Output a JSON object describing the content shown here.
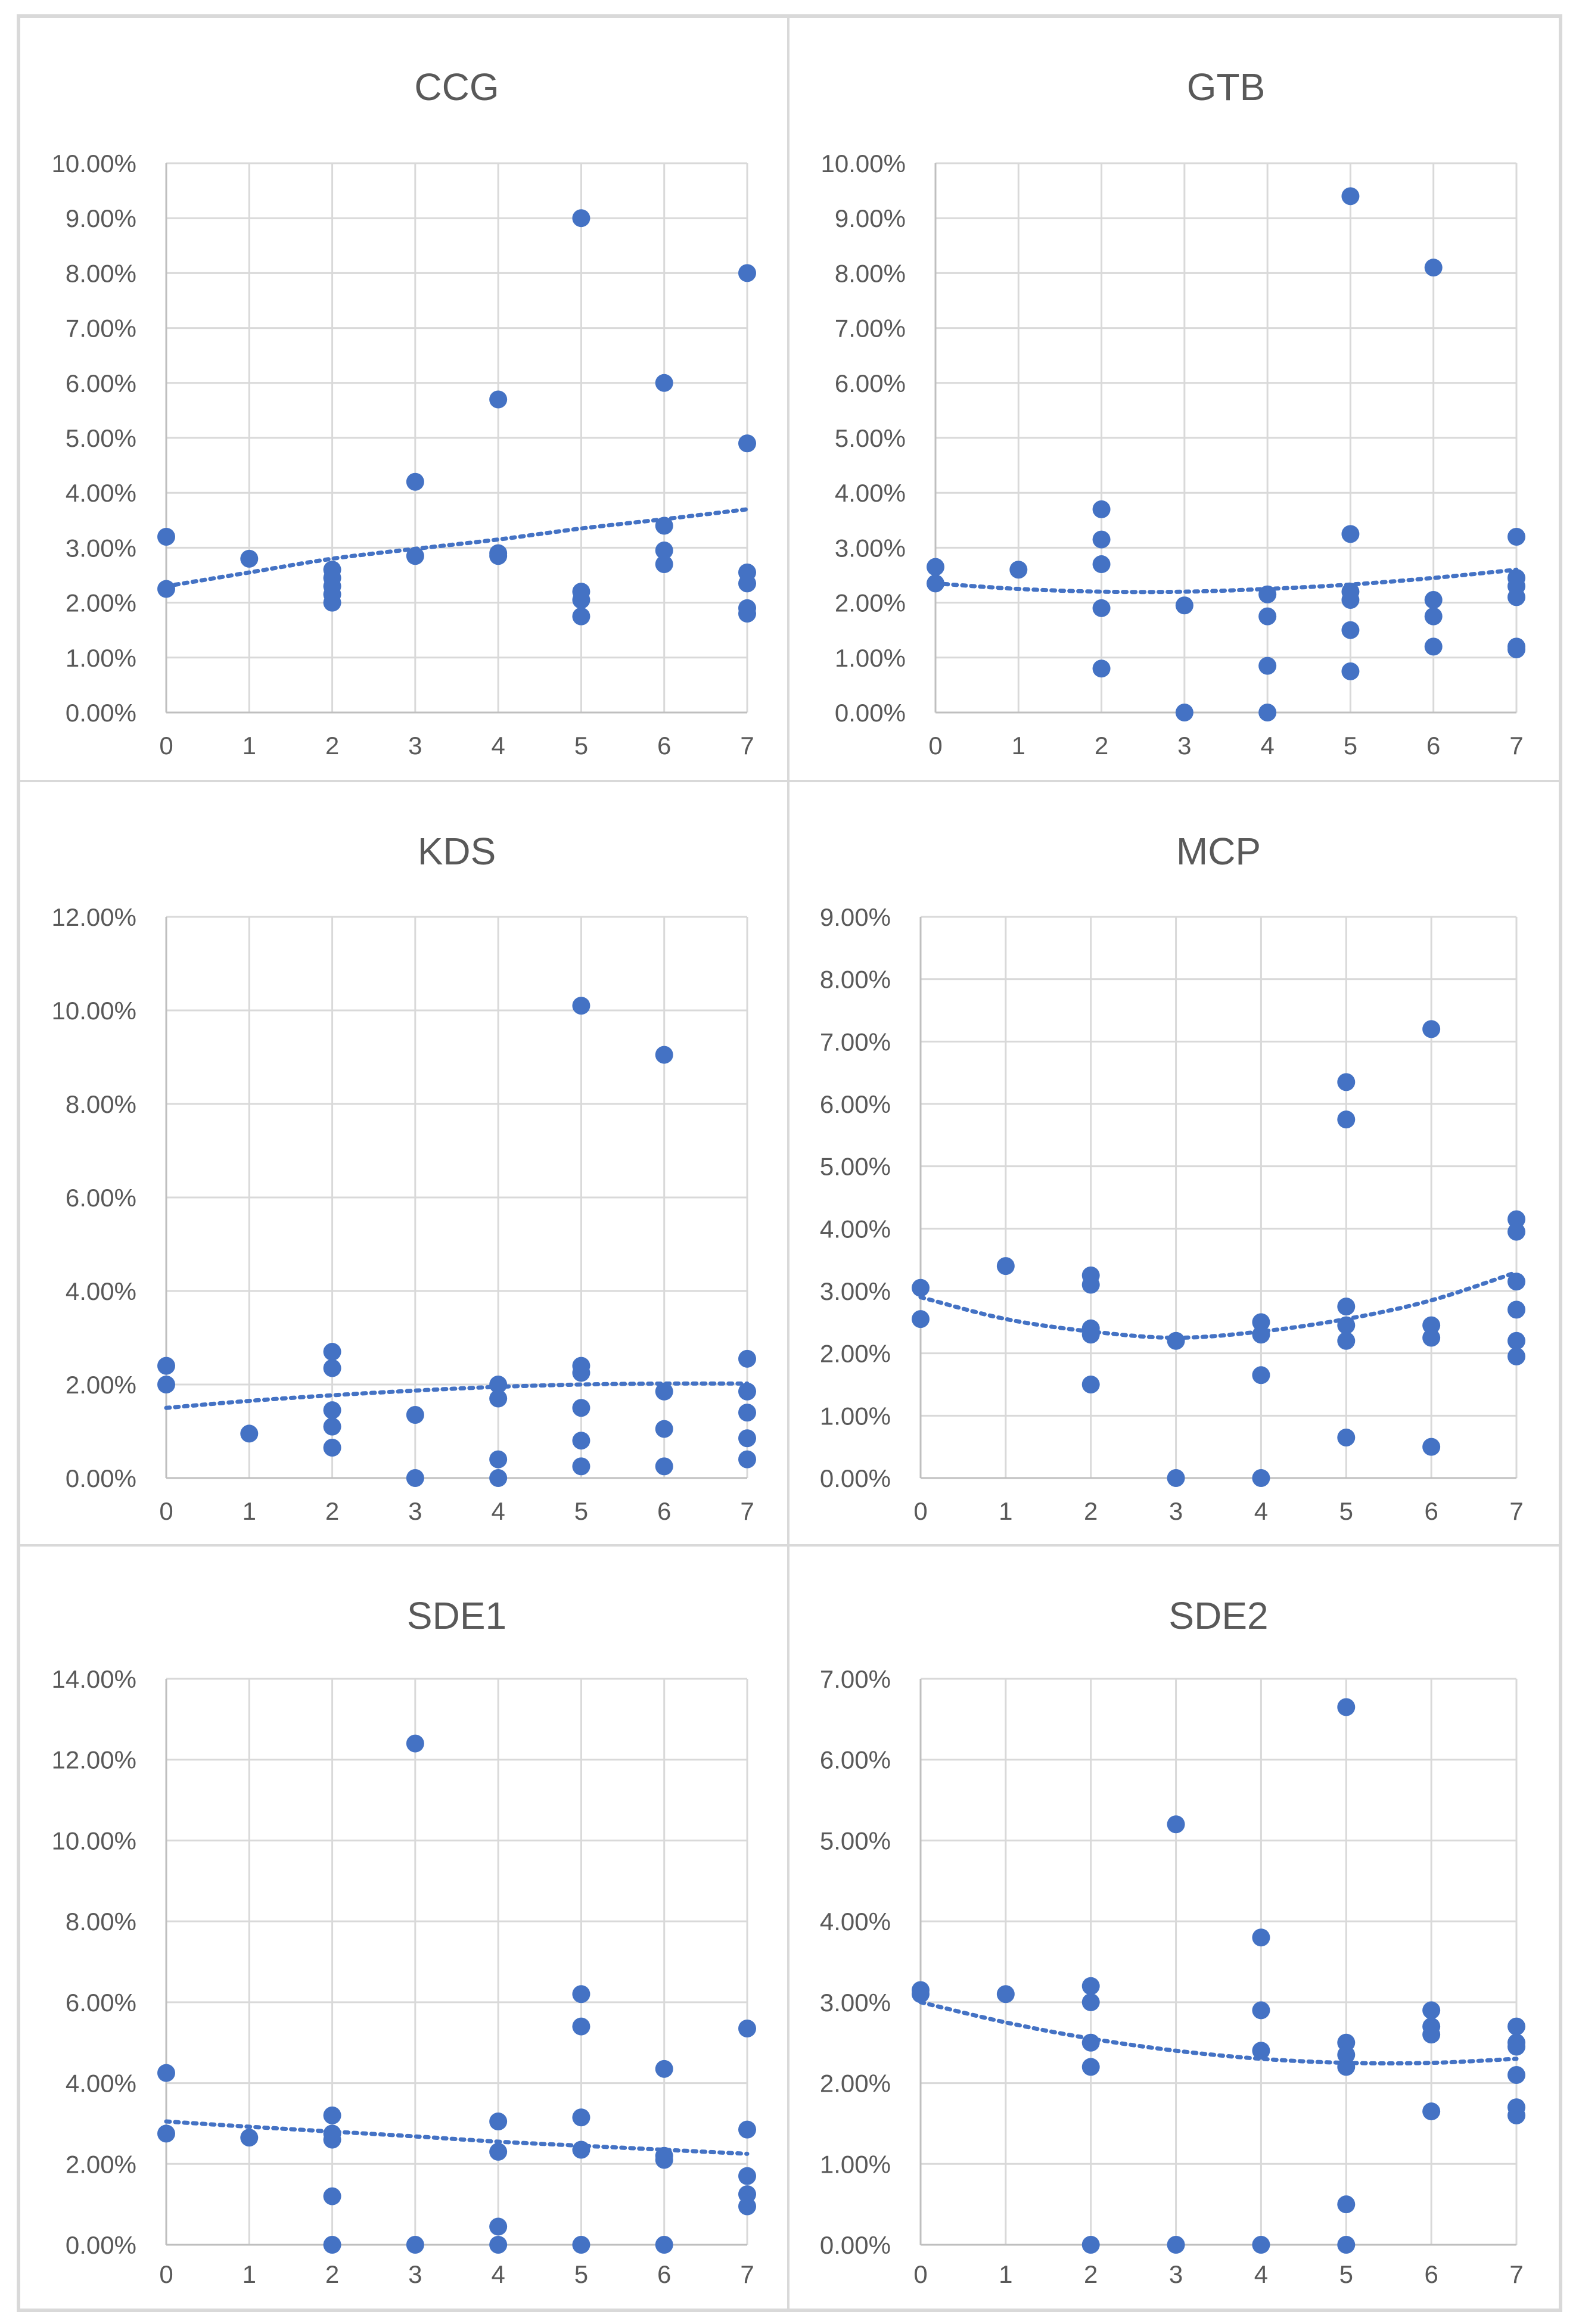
{
  "colors": {
    "marker": "#4472C4",
    "grid": "#D9D9D9",
    "axis": "#BFBFBF",
    "text": "#595959",
    "border": "#D9D9D9",
    "background": "#FFFFFF"
  },
  "chart_data": [
    {
      "type": "scatter",
      "title": "CCG",
      "xlabel": "",
      "ylabel": "",
      "xlim": [
        0,
        7
      ],
      "ylim": [
        0,
        10
      ],
      "ystep": 1,
      "x_ticks": [
        "0",
        "1",
        "2",
        "3",
        "4",
        "5",
        "6",
        "7"
      ],
      "y_ticks": [
        "0.00%",
        "1.00%",
        "2.00%",
        "3.00%",
        "4.00%",
        "5.00%",
        "6.00%",
        "7.00%",
        "8.00%",
        "9.00%",
        "10.00%"
      ],
      "grid": true,
      "legend": "none",
      "points": [
        [
          0,
          3.2
        ],
        [
          0,
          2.25
        ],
        [
          1,
          2.8
        ],
        [
          2,
          2.6
        ],
        [
          2,
          2.45
        ],
        [
          2,
          2.3
        ],
        [
          2,
          2.15
        ],
        [
          2,
          2.0
        ],
        [
          3,
          4.2
        ],
        [
          3,
          2.85
        ],
        [
          4,
          5.7
        ],
        [
          4,
          2.9
        ],
        [
          4,
          2.85
        ],
        [
          5,
          9.0
        ],
        [
          5,
          2.2
        ],
        [
          5,
          2.05
        ],
        [
          5,
          1.75
        ],
        [
          6,
          6.0
        ],
        [
          6,
          3.4
        ],
        [
          6,
          2.95
        ],
        [
          6,
          2.7
        ],
        [
          7,
          8.0
        ],
        [
          7,
          4.9
        ],
        [
          7,
          2.55
        ],
        [
          7,
          2.35
        ],
        [
          7,
          1.9
        ],
        [
          7,
          1.8
        ]
      ],
      "trendline": {
        "type": "polynomial",
        "style": "dotted",
        "points": [
          [
            0,
            2.3
          ],
          [
            1,
            2.55
          ],
          [
            2,
            2.8
          ],
          [
            3,
            2.98
          ],
          [
            4,
            3.15
          ],
          [
            5,
            3.35
          ],
          [
            6,
            3.52
          ],
          [
            7,
            3.7
          ]
        ]
      }
    },
    {
      "type": "scatter",
      "title": "GTB",
      "xlabel": "",
      "ylabel": "",
      "xlim": [
        0,
        7
      ],
      "ylim": [
        0,
        10
      ],
      "ystep": 1,
      "x_ticks": [
        "0",
        "1",
        "2",
        "3",
        "4",
        "5",
        "6",
        "7"
      ],
      "y_ticks": [
        "0.00%",
        "1.00%",
        "2.00%",
        "3.00%",
        "4.00%",
        "5.00%",
        "6.00%",
        "7.00%",
        "8.00%",
        "9.00%",
        "10.00%"
      ],
      "grid": true,
      "legend": "none",
      "points": [
        [
          0,
          2.65
        ],
        [
          0,
          2.35
        ],
        [
          1,
          2.6
        ],
        [
          2,
          3.7
        ],
        [
          2,
          3.15
        ],
        [
          2,
          2.7
        ],
        [
          2,
          1.9
        ],
        [
          2,
          0.8
        ],
        [
          3,
          1.95
        ],
        [
          3,
          0.0
        ],
        [
          4,
          2.15
        ],
        [
          4,
          1.75
        ],
        [
          4,
          0.85
        ],
        [
          4,
          0.0
        ],
        [
          5,
          9.4
        ],
        [
          5,
          3.25
        ],
        [
          5,
          2.2
        ],
        [
          5,
          2.05
        ],
        [
          5,
          1.5
        ],
        [
          5,
          0.75
        ],
        [
          6,
          8.1
        ],
        [
          6,
          2.05
        ],
        [
          6,
          1.75
        ],
        [
          6,
          1.2
        ],
        [
          7,
          3.2
        ],
        [
          7,
          2.45
        ],
        [
          7,
          2.3
        ],
        [
          7,
          2.1
        ],
        [
          7,
          1.2
        ],
        [
          7,
          1.15
        ]
      ],
      "trendline": {
        "type": "polynomial",
        "style": "dotted",
        "points": [
          [
            0,
            2.35
          ],
          [
            1,
            2.25
          ],
          [
            2,
            2.2
          ],
          [
            3,
            2.2
          ],
          [
            4,
            2.25
          ],
          [
            5,
            2.33
          ],
          [
            6,
            2.45
          ],
          [
            7,
            2.6
          ]
        ]
      }
    },
    {
      "type": "scatter",
      "title": "KDS",
      "xlabel": "",
      "ylabel": "",
      "xlim": [
        0,
        7
      ],
      "ylim": [
        0,
        12
      ],
      "ystep": 2,
      "x_ticks": [
        "0",
        "1",
        "2",
        "3",
        "4",
        "5",
        "6",
        "7"
      ],
      "y_ticks": [
        "0.00%",
        "2.00%",
        "4.00%",
        "6.00%",
        "8.00%",
        "10.00%",
        "12.00%"
      ],
      "grid": true,
      "legend": "none",
      "points": [
        [
          0,
          2.4
        ],
        [
          0,
          2.0
        ],
        [
          1,
          0.95
        ],
        [
          2,
          2.7
        ],
        [
          2,
          2.35
        ],
        [
          2,
          1.45
        ],
        [
          2,
          1.1
        ],
        [
          2,
          0.65
        ],
        [
          3,
          1.35
        ],
        [
          3,
          0.0
        ],
        [
          4,
          2.0
        ],
        [
          4,
          1.7
        ],
        [
          4,
          0.4
        ],
        [
          4,
          0.0
        ],
        [
          5,
          10.1
        ],
        [
          5,
          2.4
        ],
        [
          5,
          2.25
        ],
        [
          5,
          1.5
        ],
        [
          5,
          0.8
        ],
        [
          5,
          0.25
        ],
        [
          6,
          9.05
        ],
        [
          6,
          1.85
        ],
        [
          6,
          1.05
        ],
        [
          6,
          0.25
        ],
        [
          7,
          2.55
        ],
        [
          7,
          1.85
        ],
        [
          7,
          1.4
        ],
        [
          7,
          0.85
        ],
        [
          7,
          0.4
        ]
      ],
      "trendline": {
        "type": "polynomial",
        "style": "dotted",
        "points": [
          [
            0,
            1.5
          ],
          [
            1,
            1.65
          ],
          [
            2,
            1.77
          ],
          [
            3,
            1.87
          ],
          [
            4,
            1.95
          ],
          [
            5,
            2.0
          ],
          [
            6,
            2.02
          ],
          [
            7,
            2.02
          ]
        ]
      }
    },
    {
      "type": "scatter",
      "title": "MCP",
      "xlabel": "",
      "ylabel": "",
      "xlim": [
        0,
        7
      ],
      "ylim": [
        0,
        9
      ],
      "ystep": 1,
      "x_ticks": [
        "0",
        "1",
        "2",
        "3",
        "4",
        "5",
        "6",
        "7"
      ],
      "y_ticks": [
        "0.00%",
        "1.00%",
        "2.00%",
        "3.00%",
        "4.00%",
        "5.00%",
        "6.00%",
        "7.00%",
        "8.00%",
        "9.00%"
      ],
      "grid": true,
      "legend": "none",
      "points": [
        [
          0,
          3.05
        ],
        [
          0,
          2.55
        ],
        [
          1,
          3.4
        ],
        [
          2,
          3.25
        ],
        [
          2,
          3.1
        ],
        [
          2,
          2.4
        ],
        [
          2,
          2.3
        ],
        [
          2,
          1.5
        ],
        [
          3,
          2.2
        ],
        [
          3,
          0.0
        ],
        [
          4,
          2.5
        ],
        [
          4,
          2.3
        ],
        [
          4,
          1.65
        ],
        [
          4,
          0.0
        ],
        [
          5,
          6.35
        ],
        [
          5,
          5.75
        ],
        [
          5,
          2.75
        ],
        [
          5,
          2.45
        ],
        [
          5,
          2.2
        ],
        [
          5,
          0.65
        ],
        [
          6,
          7.2
        ],
        [
          6,
          2.45
        ],
        [
          6,
          2.25
        ],
        [
          6,
          0.5
        ],
        [
          7,
          4.15
        ],
        [
          7,
          3.95
        ],
        [
          7,
          3.15
        ],
        [
          7,
          2.7
        ],
        [
          7,
          2.2
        ],
        [
          7,
          1.95
        ]
      ],
      "trendline": {
        "type": "polynomial",
        "style": "dotted",
        "points": [
          [
            0,
            2.9
          ],
          [
            1,
            2.55
          ],
          [
            2,
            2.35
          ],
          [
            3,
            2.25
          ],
          [
            4,
            2.35
          ],
          [
            5,
            2.55
          ],
          [
            6,
            2.85
          ],
          [
            7,
            3.3
          ]
        ]
      }
    },
    {
      "type": "scatter",
      "title": "SDE1",
      "xlabel": "",
      "ylabel": "",
      "xlim": [
        0,
        7
      ],
      "ylim": [
        0,
        14
      ],
      "ystep": 2,
      "x_ticks": [
        "0",
        "1",
        "2",
        "3",
        "4",
        "5",
        "6",
        "7"
      ],
      "y_ticks": [
        "0.00%",
        "2.00%",
        "4.00%",
        "6.00%",
        "8.00%",
        "10.00%",
        "12.00%",
        "14.00%"
      ],
      "grid": true,
      "legend": "none",
      "points": [
        [
          0,
          4.25
        ],
        [
          0,
          2.75
        ],
        [
          1,
          2.65
        ],
        [
          2,
          3.2
        ],
        [
          2,
          2.75
        ],
        [
          2,
          2.6
        ],
        [
          2,
          1.2
        ],
        [
          2,
          0.0
        ],
        [
          3,
          12.4
        ],
        [
          3,
          0.0
        ],
        [
          4,
          3.05
        ],
        [
          4,
          2.3
        ],
        [
          4,
          0.45
        ],
        [
          4,
          0.0
        ],
        [
          5,
          6.2
        ],
        [
          5,
          5.4
        ],
        [
          5,
          3.15
        ],
        [
          5,
          2.35
        ],
        [
          5,
          0.0
        ],
        [
          6,
          4.35
        ],
        [
          6,
          2.2
        ],
        [
          6,
          2.1
        ],
        [
          6,
          0.0
        ],
        [
          7,
          5.35
        ],
        [
          7,
          2.85
        ],
        [
          7,
          1.7
        ],
        [
          7,
          1.25
        ],
        [
          7,
          0.95
        ]
      ],
      "trendline": {
        "type": "polynomial",
        "style": "dotted",
        "points": [
          [
            0,
            3.05
          ],
          [
            1,
            2.92
          ],
          [
            2,
            2.8
          ],
          [
            3,
            2.68
          ],
          [
            4,
            2.55
          ],
          [
            5,
            2.45
          ],
          [
            6,
            2.35
          ],
          [
            7,
            2.25
          ]
        ]
      }
    },
    {
      "type": "scatter",
      "title": "SDE2",
      "xlabel": "",
      "ylabel": "",
      "xlim": [
        0,
        7
      ],
      "ylim": [
        0,
        7
      ],
      "ystep": 1,
      "x_ticks": [
        "0",
        "1",
        "2",
        "3",
        "4",
        "5",
        "6",
        "7"
      ],
      "y_ticks": [
        "0.00%",
        "1.00%",
        "2.00%",
        "3.00%",
        "4.00%",
        "5.00%",
        "6.00%",
        "7.00%"
      ],
      "grid": true,
      "legend": "none",
      "points": [
        [
          0,
          3.15
        ],
        [
          0,
          3.1
        ],
        [
          1,
          3.1
        ],
        [
          2,
          3.2
        ],
        [
          2,
          3.0
        ],
        [
          2,
          2.5
        ],
        [
          2,
          2.2
        ],
        [
          2,
          0.0
        ],
        [
          3,
          5.2
        ],
        [
          3,
          0.0
        ],
        [
          4,
          3.8
        ],
        [
          4,
          2.9
        ],
        [
          4,
          2.4
        ],
        [
          4,
          0.0
        ],
        [
          5,
          6.65
        ],
        [
          5,
          2.5
        ],
        [
          5,
          2.35
        ],
        [
          5,
          2.2
        ],
        [
          5,
          0.5
        ],
        [
          5,
          0.0
        ],
        [
          6,
          2.9
        ],
        [
          6,
          2.7
        ],
        [
          6,
          2.6
        ],
        [
          6,
          1.65
        ],
        [
          7,
          2.7
        ],
        [
          7,
          2.5
        ],
        [
          7,
          2.45
        ],
        [
          7,
          2.1
        ],
        [
          7,
          1.7
        ],
        [
          7,
          1.6
        ]
      ],
      "trendline": {
        "type": "polynomial",
        "style": "dotted",
        "points": [
          [
            0,
            3.0
          ],
          [
            1,
            2.75
          ],
          [
            2,
            2.55
          ],
          [
            3,
            2.4
          ],
          [
            4,
            2.3
          ],
          [
            5,
            2.25
          ],
          [
            6,
            2.25
          ],
          [
            7,
            2.3
          ]
        ]
      }
    }
  ]
}
